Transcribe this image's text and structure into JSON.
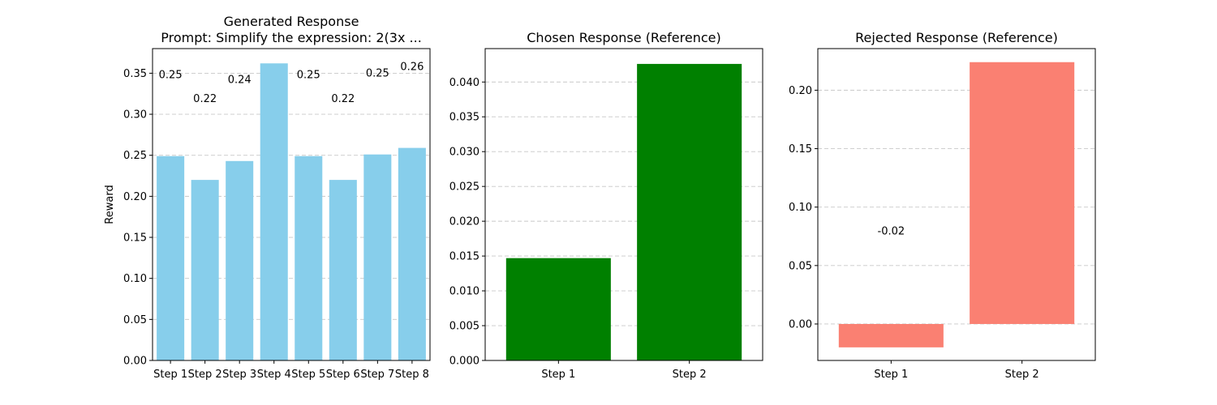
{
  "chart_data": [
    {
      "type": "bar",
      "title": [
        "Generated Response",
        "Prompt: Simplify the expression: 2(3x ..."
      ],
      "xlabel": "",
      "ylabel": "Reward",
      "categories": [
        "Step 1",
        "Step 2",
        "Step 3",
        "Step 4",
        "Step 5",
        "Step 6",
        "Step 7",
        "Step 8"
      ],
      "values": [
        0.249,
        0.22,
        0.243,
        0.362,
        0.249,
        0.22,
        0.251,
        0.259
      ],
      "data_labels": [
        "0.25",
        "0.22",
        "0.24",
        "",
        "0.25",
        "0.22",
        "0.25",
        "0.26"
      ],
      "ylim": [
        0,
        0.38
      ],
      "yticks": [
        0.0,
        0.05,
        0.1,
        0.15,
        0.2,
        0.25,
        0.3,
        0.35
      ],
      "ytick_labels": [
        "0.00",
        "0.05",
        "0.10",
        "0.15",
        "0.20",
        "0.25",
        "0.30",
        "0.35"
      ],
      "color": "#87ceeb",
      "grid": "y-dashed"
    },
    {
      "type": "bar",
      "title": [
        "Chosen Response (Reference)"
      ],
      "xlabel": "",
      "ylabel": "",
      "categories": [
        "Step 1",
        "Step 2"
      ],
      "values": [
        0.0147,
        0.0426
      ],
      "data_labels": [
        "",
        ""
      ],
      "ylim": [
        0,
        0.0448
      ],
      "yticks": [
        0.0,
        0.005,
        0.01,
        0.015,
        0.02,
        0.025,
        0.03,
        0.035,
        0.04
      ],
      "ytick_labels": [
        "0.000",
        "0.005",
        "0.010",
        "0.015",
        "0.020",
        "0.025",
        "0.030",
        "0.035",
        "0.040"
      ],
      "color": "#008000",
      "grid": "y-dashed"
    },
    {
      "type": "bar",
      "title": [
        "Rejected Response (Reference)"
      ],
      "xlabel": "",
      "ylabel": "",
      "categories": [
        "Step 1",
        "Step 2"
      ],
      "values": [
        -0.02,
        0.224
      ],
      "data_labels": [
        "-0.02",
        ""
      ],
      "ylim": [
        -0.0312,
        0.2356
      ],
      "yticks": [
        0.0,
        0.05,
        0.1,
        0.15,
        0.2
      ],
      "ytick_labels": [
        "0.00",
        "0.05",
        "0.10",
        "0.15",
        "0.20"
      ],
      "color": "#fa8072",
      "grid": "y-dashed"
    }
  ]
}
